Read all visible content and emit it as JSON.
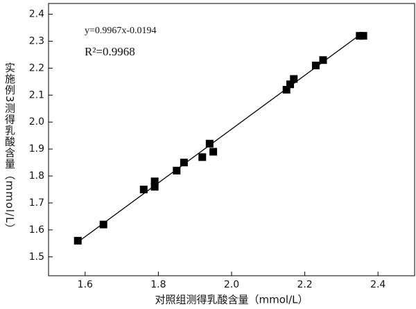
{
  "chart_data": {
    "type": "scatter",
    "x_label": "对照组测得乳酸含量（mmol/L）",
    "y_label": "实施例3测得乳酸含量（mmol/L）",
    "annotations": [
      "y=0.9967x-0.0194",
      "R²=0.9968"
    ],
    "x": [
      1.58,
      1.65,
      1.76,
      1.79,
      1.79,
      1.85,
      1.87,
      1.92,
      1.94,
      1.95,
      2.15,
      2.16,
      2.17,
      2.23,
      2.25,
      2.35,
      2.36
    ],
    "values": [
      1.56,
      1.62,
      1.75,
      1.78,
      1.76,
      1.82,
      1.85,
      1.87,
      1.92,
      1.89,
      2.12,
      2.14,
      2.16,
      2.21,
      2.23,
      2.32,
      2.32
    ],
    "color": "#000000",
    "fit_line": {
      "x": [
        1.58,
        2.36
      ],
      "values": [
        1.555,
        2.333
      ],
      "color": "#000000"
    },
    "xlim": [
      1.5,
      2.5
    ],
    "ylim": [
      1.43,
      2.44
    ],
    "xticks": [
      1.6,
      1.8,
      {
        "value": 2,
        "label": "2.0"
      },
      2.2,
      2.4
    ],
    "yticks": [
      1.5,
      1.6,
      1.7,
      1.8,
      1.9,
      {
        "value": 2,
        "label": "2.0"
      },
      2.1,
      2.2,
      2.3,
      2.4
    ]
  }
}
